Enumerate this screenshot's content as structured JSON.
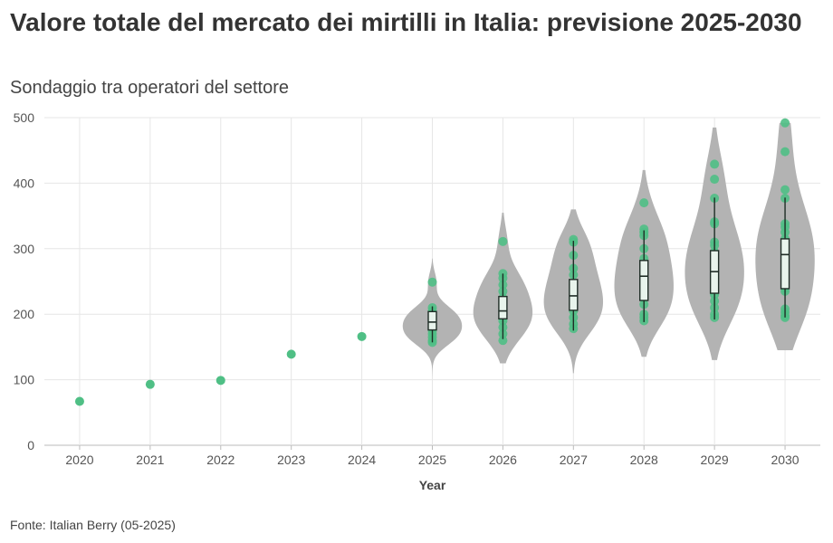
{
  "title": "Valore totale del mercato dei mirtilli in Italia: previsione 2025-2030",
  "subtitle": "Sondaggio tra operatori del settore",
  "source": "Fonte: Italian Berry (05-2025)",
  "colors": {
    "point": "#4fbf85",
    "violin": "#b3b3b3",
    "box_fill": "#e8f4ec",
    "box_stroke": "#1f2d26",
    "grid": "#e6e6e6"
  },
  "chart_data": {
    "type": "violin",
    "xlabel": "Year",
    "ylabel": "",
    "ylim": [
      0,
      500
    ],
    "yticks": [
      0,
      100,
      200,
      300,
      400,
      500
    ],
    "categories": [
      "2020",
      "2021",
      "2022",
      "2023",
      "2024",
      "2025",
      "2026",
      "2027",
      "2028",
      "2029",
      "2030"
    ],
    "historical": [
      {
        "year": "2020",
        "value": 67
      },
      {
        "year": "2021",
        "value": 93
      },
      {
        "year": "2022",
        "value": 99
      },
      {
        "year": "2023",
        "value": 139
      },
      {
        "year": "2024",
        "value": 166
      }
    ],
    "forecasts": [
      {
        "year": "2025",
        "points": [
          249,
          210,
          205,
          200,
          195,
          190,
          185,
          180,
          175,
          170,
          165,
          160,
          157
        ],
        "box": {
          "q1": 176,
          "median": 188,
          "q3": 204,
          "whisker_low": 157,
          "whisker_high": 212
        },
        "violin_range": [
          105,
          285
        ]
      },
      {
        "year": "2026",
        "points": [
          311,
          262,
          255,
          245,
          235,
          225,
          215,
          205,
          200,
          195,
          190,
          180,
          170,
          160
        ],
        "box": {
          "q1": 193,
          "median": 205,
          "q3": 227,
          "whisker_low": 162,
          "whisker_high": 262
        },
        "violin_range": [
          125,
          355
        ]
      },
      {
        "year": "2027",
        "points": [
          314,
          310,
          290,
          270,
          260,
          245,
          235,
          225,
          215,
          205,
          195,
          185,
          178
        ],
        "box": {
          "q1": 206,
          "median": 228,
          "q3": 253,
          "whisker_low": 175,
          "whisker_high": 312
        },
        "violin_range": [
          110,
          360
        ]
      },
      {
        "year": "2028",
        "points": [
          370,
          330,
          325,
          320,
          300,
          285,
          275,
          265,
          255,
          245,
          235,
          225,
          215,
          200,
          195,
          190
        ],
        "box": {
          "q1": 221,
          "median": 258,
          "q3": 282,
          "whisker_low": 188,
          "whisker_high": 328
        },
        "violin_range": [
          135,
          420
        ]
      },
      {
        "year": "2029",
        "points": [
          429,
          406,
          377,
          341,
          338,
          310,
          305,
          295,
          285,
          275,
          265,
          255,
          245,
          230,
          220,
          210,
          200,
          195
        ],
        "box": {
          "q1": 232,
          "median": 265,
          "q3": 297,
          "whisker_low": 192,
          "whisker_high": 378
        },
        "violin_range": [
          130,
          485
        ]
      },
      {
        "year": "2030",
        "points": [
          492,
          448,
          390,
          377,
          338,
          333,
          325,
          315,
          305,
          295,
          285,
          270,
          255,
          240,
          235,
          208,
          203,
          198,
          195
        ],
        "box": {
          "q1": 239,
          "median": 291,
          "q3": 315,
          "whisker_low": 195,
          "whisker_high": 378
        },
        "violin_range": [
          145,
          492
        ]
      }
    ]
  }
}
